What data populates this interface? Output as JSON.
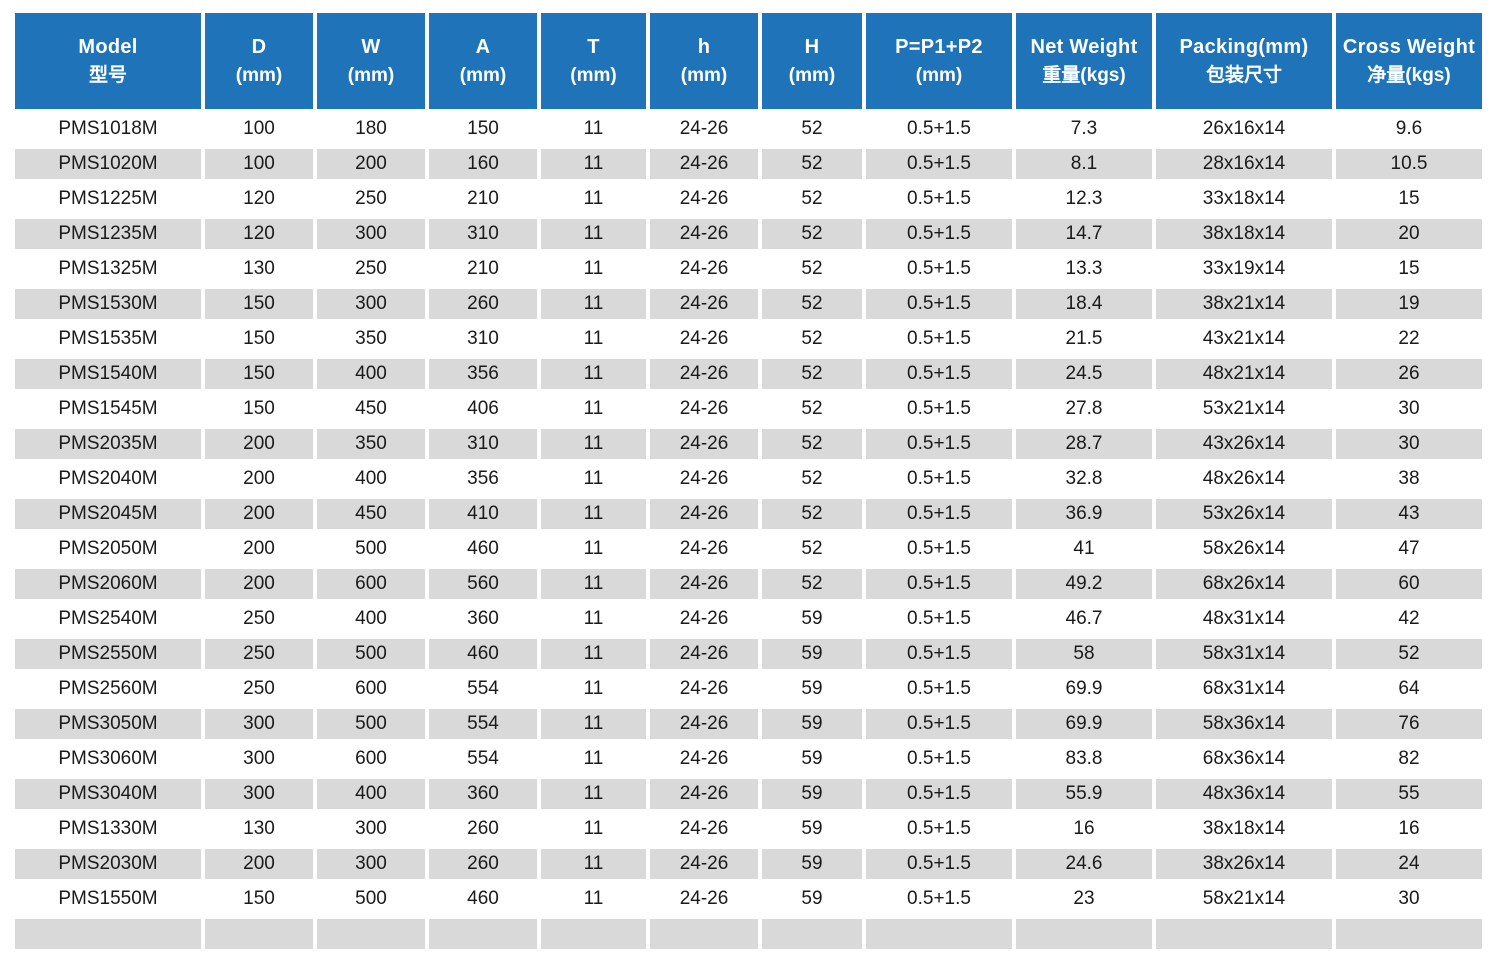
{
  "colors": {
    "header_bg": "#1F73B9",
    "row_alt_bg": "#D9D9D9",
    "row_bg": "#FFFFFF",
    "header_text": "#FFFFFF",
    "body_text": "#1A1A1A"
  },
  "table": {
    "columns": [
      {
        "key": "model",
        "line1": "Model",
        "line2": "型号"
      },
      {
        "key": "d",
        "line1": "D",
        "line2": "(mm)"
      },
      {
        "key": "w",
        "line1": "W",
        "line2": "(mm)"
      },
      {
        "key": "a",
        "line1": "A",
        "line2": "(mm)"
      },
      {
        "key": "t",
        "line1": "T",
        "line2": "(mm)"
      },
      {
        "key": "h-lower",
        "line1": "h",
        "line2": "(mm)"
      },
      {
        "key": "h-upper",
        "line1": "H",
        "line2": "(mm)"
      },
      {
        "key": "p",
        "line1": "P=P1+P2",
        "line2": "(mm)"
      },
      {
        "key": "net-weight",
        "line1": "Net Weight",
        "line2": "重量(kgs)"
      },
      {
        "key": "packing",
        "line1": "Packing(mm)",
        "line2": "包装尺寸"
      },
      {
        "key": "cross-weight",
        "line1": "Cross Weight",
        "line2": "净量(kgs)"
      }
    ],
    "rows": [
      {
        "cells": [
          "PMS1018M",
          "100",
          "180",
          "150",
          "11",
          "24-26",
          "52",
          "0.5+1.5",
          "7.3",
          "26x16x14",
          "9.6"
        ]
      },
      {
        "cells": [
          "PMS1020M",
          "100",
          "200",
          "160",
          "11",
          "24-26",
          "52",
          "0.5+1.5",
          "8.1",
          "28x16x14",
          "10.5"
        ]
      },
      {
        "cells": [
          "PMS1225M",
          "120",
          "250",
          "210",
          "11",
          "24-26",
          "52",
          "0.5+1.5",
          "12.3",
          "33x18x14",
          "15"
        ]
      },
      {
        "cells": [
          "PMS1235M",
          "120",
          "300",
          "310",
          "11",
          "24-26",
          "52",
          "0.5+1.5",
          "14.7",
          "38x18x14",
          "20"
        ]
      },
      {
        "cells": [
          "PMS1325M",
          "130",
          "250",
          "210",
          "11",
          "24-26",
          "52",
          "0.5+1.5",
          "13.3",
          "33x19x14",
          "15"
        ]
      },
      {
        "cells": [
          "PMS1530M",
          "150",
          "300",
          "260",
          "11",
          "24-26",
          "52",
          "0.5+1.5",
          "18.4",
          "38x21x14",
          "19"
        ]
      },
      {
        "cells": [
          "PMS1535M",
          "150",
          "350",
          "310",
          "11",
          "24-26",
          "52",
          "0.5+1.5",
          "21.5",
          "43x21x14",
          "22"
        ],
        "packing_shift": true
      },
      {
        "cells": [
          "PMS1540M",
          "150",
          "400",
          "356",
          "11",
          "24-26",
          "52",
          "0.5+1.5",
          "24.5",
          "48x21x14",
          "26"
        ]
      },
      {
        "cells": [
          "PMS1545M",
          "150",
          "450",
          "406",
          "11",
          "24-26",
          "52",
          "0.5+1.5",
          "27.8",
          "53x21x14",
          "30"
        ],
        "packing_shift": true
      },
      {
        "cells": [
          "PMS2035M",
          "200",
          "350",
          "310",
          "11",
          "24-26",
          "52",
          "0.5+1.5",
          "28.7",
          "43x26x14",
          "30"
        ]
      },
      {
        "cells": [
          "PMS2040M",
          "200",
          "400",
          "356",
          "11",
          "24-26",
          "52",
          "0.5+1.5",
          "32.8",
          "48x26x14",
          "38"
        ]
      },
      {
        "cells": [
          "PMS2045M",
          "200",
          "450",
          "410",
          "11",
          "24-26",
          "52",
          "0.5+1.5",
          "36.9",
          "53x26x14",
          "43"
        ]
      },
      {
        "cells": [
          "PMS2050M",
          "200",
          "500",
          "460",
          "11",
          "24-26",
          "52",
          "0.5+1.5",
          "41",
          "58x26x14",
          "47"
        ],
        "packing_shift": true
      },
      {
        "cells": [
          "PMS2060M",
          "200",
          "600",
          "560",
          "11",
          "24-26",
          "52",
          "0.5+1.5",
          "49.2",
          "68x26x14",
          "60"
        ]
      },
      {
        "cells": [
          "PMS2540M",
          "250",
          "400",
          "360",
          "11",
          "24-26",
          "59",
          "0.5+1.5",
          "46.7",
          "48x31x14",
          "42"
        ]
      },
      {
        "cells": [
          "PMS2550M",
          "250",
          "500",
          "460",
          "11",
          "24-26",
          "59",
          "0.5+1.5",
          "58",
          "58x31x14",
          "52"
        ]
      },
      {
        "cells": [
          "PMS2560M",
          "250",
          "600",
          "554",
          "11",
          "24-26",
          "59",
          "0.5+1.5",
          "69.9",
          "68x31x14",
          "64"
        ],
        "packing_shift": true
      },
      {
        "cells": [
          "PMS3050M",
          "300",
          "500",
          "554",
          "11",
          "24-26",
          "59",
          "0.5+1.5",
          "69.9",
          "58x36x14",
          "76"
        ]
      },
      {
        "cells": [
          "PMS3060M",
          "300",
          "600",
          "554",
          "11",
          "24-26",
          "59",
          "0.5+1.5",
          "83.8",
          "68x36x14",
          "82"
        ],
        "packing_shift": true
      },
      {
        "cells": [
          "PMS3040M",
          "300",
          "400",
          "360",
          "11",
          "24-26",
          "59",
          "0.5+1.5",
          "55.9",
          "48x36x14",
          "55"
        ]
      },
      {
        "cells": [
          "PMS1330M",
          "130",
          "300",
          "260",
          "11",
          "24-26",
          "59",
          "0.5+1.5",
          "16",
          "38x18x14",
          "16"
        ]
      },
      {
        "cells": [
          "PMS2030M",
          "200",
          "300",
          "260",
          "11",
          "24-26",
          "59",
          "0.5+1.5",
          "24.6",
          "38x26x14",
          "24"
        ]
      },
      {
        "cells": [
          "PMS1550M",
          "150",
          "500",
          "460",
          "11",
          "24-26",
          "59",
          "0.5+1.5",
          "23",
          "58x21x14",
          "30"
        ]
      },
      {
        "cells": [
          "",
          "",
          "",
          "",
          "",
          "",
          "",
          "",
          "",
          "",
          ""
        ]
      }
    ]
  }
}
